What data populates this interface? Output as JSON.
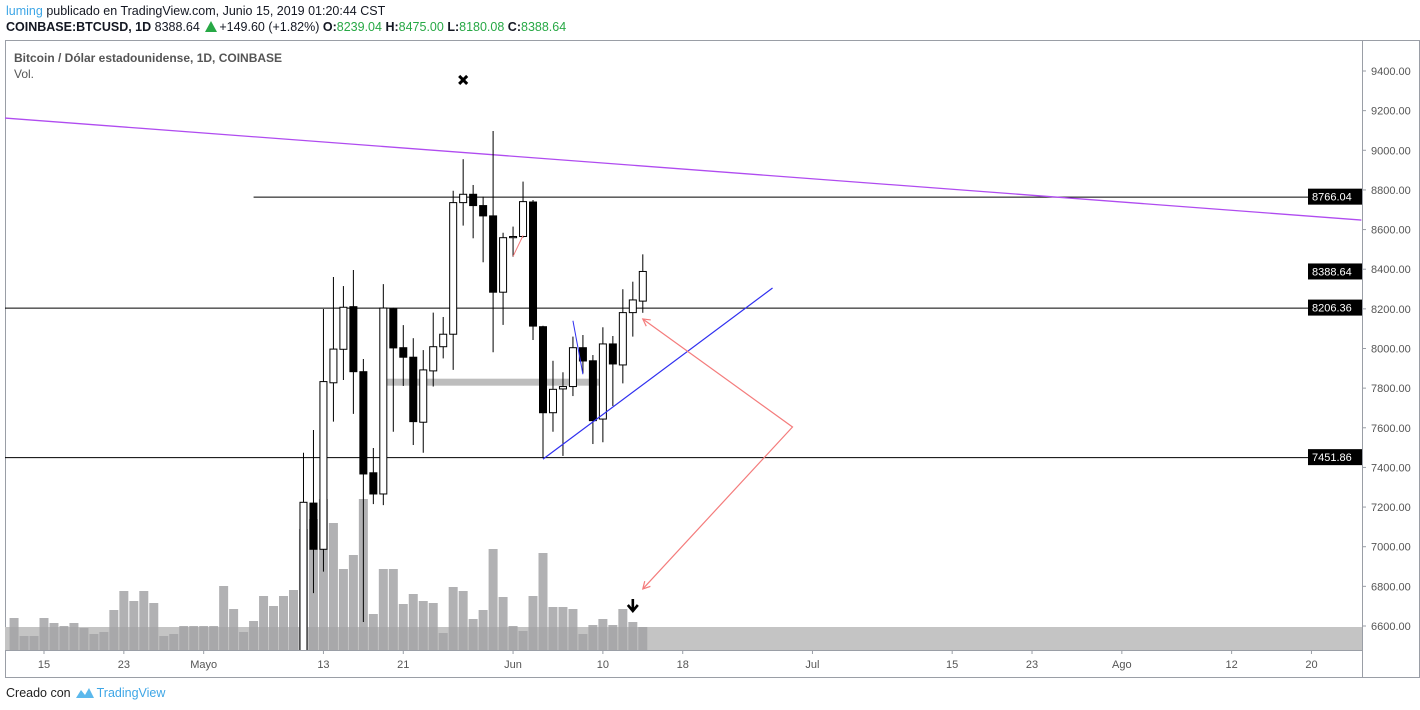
{
  "header": {
    "user": "luming",
    "published": "publicado en TradingView.com, Junio 15, 2019 01:20:44 CST",
    "symbol": "COINBASE:BTCUSD, 1D",
    "last": "8388.64",
    "change": "+149.60 (+1.82%)",
    "o_label": "O:",
    "o": "8239.04",
    "h_label": "H:",
    "h": "8475.00",
    "l_label": "L:",
    "l": "8180.08",
    "c_label": "C:",
    "c": "8388.64"
  },
  "legend": {
    "title": "Bitcoin / Dólar estadounidense, 1D, COINBASE",
    "volume": "Vol."
  },
  "footer": {
    "created_with": "Creado con",
    "brand": "TradingView"
  },
  "colors": {
    "up_body": "#ffffff",
    "down_body": "#000000",
    "volume": "#a3a3a6",
    "trendline_purple": "#b04cf0",
    "trendline_blue": "#3030f0",
    "arrow_red": "#f47c7c",
    "accent_up": "#27a845"
  },
  "chart_data": {
    "type": "candlestick",
    "interval": "1D",
    "yaxis": {
      "range": [
        6500,
        9500
      ],
      "ticks": [
        9400,
        9200,
        9000,
        8800,
        8600,
        8400,
        8200,
        8000,
        7800,
        7600,
        7400,
        7200,
        7000,
        6800,
        6600
      ],
      "position": "right"
    },
    "xaxis": {
      "range": [
        "2019-04-11",
        "2019-08-25"
      ],
      "tick_labels": [
        {
          "date": "2019-04-15",
          "label": "15"
        },
        {
          "date": "2019-04-23",
          "label": "23"
        },
        {
          "date": "2019-05-01",
          "label": "Mayo"
        },
        {
          "date": "2019-05-13",
          "label": "13"
        },
        {
          "date": "2019-05-21",
          "label": "21"
        },
        {
          "date": "2019-06-01",
          "label": "Jun"
        },
        {
          "date": "2019-06-10",
          "label": "10"
        },
        {
          "date": "2019-06-18",
          "label": "18"
        },
        {
          "date": "2019-07-01",
          "label": "Jul"
        },
        {
          "date": "2019-07-15",
          "label": "15"
        },
        {
          "date": "2019-07-23",
          "label": "23"
        },
        {
          "date": "2019-08-01",
          "label": "Ago"
        },
        {
          "date": "2019-08-12",
          "label": "12"
        },
        {
          "date": "2019-08-20",
          "label": "20"
        }
      ]
    },
    "grid": false,
    "candles": [
      {
        "date": "2019-05-11",
        "o": 6350,
        "h": 7474,
        "l": 6150,
        "c": 7224
      },
      {
        "date": "2019-05-12",
        "o": 7220,
        "h": 7589,
        "l": 6766,
        "c": 6987
      },
      {
        "date": "2019-05-13",
        "o": 6987,
        "h": 8199,
        "l": 6874,
        "c": 7833
      },
      {
        "date": "2019-05-14",
        "o": 7827,
        "h": 8361,
        "l": 7631,
        "c": 7997
      },
      {
        "date": "2019-05-15",
        "o": 7996,
        "h": 8315,
        "l": 7841,
        "c": 8208
      },
      {
        "date": "2019-05-16",
        "o": 8211,
        "h": 8396,
        "l": 7670,
        "c": 7883
      },
      {
        "date": "2019-05-17",
        "o": 7883,
        "h": 7947,
        "l": 6620,
        "c": 7367
      },
      {
        "date": "2019-05-18",
        "o": 7373,
        "h": 7498,
        "l": 7215,
        "c": 7266
      },
      {
        "date": "2019-05-19",
        "o": 7266,
        "h": 8325,
        "l": 7210,
        "c": 8204
      },
      {
        "date": "2019-05-20",
        "o": 8199,
        "h": 8205,
        "l": 7580,
        "c": 8003
      },
      {
        "date": "2019-05-21",
        "o": 8004,
        "h": 8118,
        "l": 7811,
        "c": 7956
      },
      {
        "date": "2019-05-22",
        "o": 7956,
        "h": 8052,
        "l": 7513,
        "c": 7631
      },
      {
        "date": "2019-05-23",
        "o": 7628,
        "h": 7992,
        "l": 7474,
        "c": 7892
      },
      {
        "date": "2019-05-24",
        "o": 7887,
        "h": 8181,
        "l": 7808,
        "c": 8009
      },
      {
        "date": "2019-05-25",
        "o": 8009,
        "h": 8159,
        "l": 7950,
        "c": 8072
      },
      {
        "date": "2019-05-26",
        "o": 8072,
        "h": 8796,
        "l": 7892,
        "c": 8736
      },
      {
        "date": "2019-05-27",
        "o": 8736,
        "h": 8955,
        "l": 8620,
        "c": 8778
      },
      {
        "date": "2019-05-28",
        "o": 8778,
        "h": 8825,
        "l": 8556,
        "c": 8721
      },
      {
        "date": "2019-05-29",
        "o": 8721,
        "h": 8766,
        "l": 8435,
        "c": 8669
      },
      {
        "date": "2019-05-30",
        "o": 8669,
        "h": 9097,
        "l": 7981,
        "c": 8284
      },
      {
        "date": "2019-05-31",
        "o": 8284,
        "h": 8584,
        "l": 8119,
        "c": 8559
      },
      {
        "date": "2019-06-01",
        "o": 8559,
        "h": 8615,
        "l": 8463,
        "c": 8565
      },
      {
        "date": "2019-06-02",
        "o": 8565,
        "h": 8842,
        "l": 8560,
        "c": 8741
      },
      {
        "date": "2019-06-03",
        "o": 8739,
        "h": 8749,
        "l": 8043,
        "c": 8113
      },
      {
        "date": "2019-06-04",
        "o": 8110,
        "h": 8115,
        "l": 7447,
        "c": 7676
      },
      {
        "date": "2019-06-05",
        "o": 7676,
        "h": 7938,
        "l": 7580,
        "c": 7794
      },
      {
        "date": "2019-06-06",
        "o": 7796,
        "h": 7880,
        "l": 7458,
        "c": 7808
      },
      {
        "date": "2019-06-07",
        "o": 7808,
        "h": 8060,
        "l": 7760,
        "c": 8004
      },
      {
        "date": "2019-06-08",
        "o": 8004,
        "h": 8068,
        "l": 7875,
        "c": 7937
      },
      {
        "date": "2019-06-09",
        "o": 7938,
        "h": 7967,
        "l": 7518,
        "c": 7636
      },
      {
        "date": "2019-06-10",
        "o": 7644,
        "h": 8107,
        "l": 7527,
        "c": 8023
      },
      {
        "date": "2019-06-11",
        "o": 8023,
        "h": 8063,
        "l": 7710,
        "c": 7922
      },
      {
        "date": "2019-06-12",
        "o": 7917,
        "h": 8299,
        "l": 7824,
        "c": 8181
      },
      {
        "date": "2019-06-13",
        "o": 8181,
        "h": 8337,
        "l": 8060,
        "c": 8245
      },
      {
        "date": "2019-06-14",
        "o": 8239.04,
        "h": 8475.0,
        "l": 8180.08,
        "c": 8388.64
      }
    ],
    "volume_start": "2019-04-12",
    "volume_relative": [
      32,
      14,
      14,
      32,
      27,
      24,
      27,
      22,
      16,
      18,
      40,
      59,
      49,
      59,
      47,
      14,
      16,
      24,
      24,
      24,
      24,
      64,
      41,
      18,
      29,
      54,
      44,
      54,
      60,
      121,
      131,
      151,
      127,
      81,
      95,
      151,
      36,
      81,
      81,
      46,
      56,
      49,
      47,
      17,
      63,
      59,
      31,
      40,
      101,
      53,
      24,
      19,
      54,
      97,
      43,
      43,
      41,
      16,
      25,
      31,
      25,
      41,
      28,
      23
    ],
    "price_tags": [
      {
        "label": "8766.04",
        "value": 8766.04
      },
      {
        "label": "8388.64",
        "value": 8388.64
      },
      {
        "label": "8206.36",
        "value": 8206.36
      },
      {
        "label": "7451.86",
        "value": 7451.86
      }
    ],
    "drawings": {
      "horizontal_lines": [
        {
          "value": 8766.04,
          "from": "2019-05-06"
        },
        {
          "value": 8206.36,
          "from": "2019-04-11"
        },
        {
          "value": 7451.86,
          "from": "2019-04-11"
        }
      ],
      "purple_trendline": [
        [
          "2019-04-11",
          9163
        ],
        [
          "2019-08-25",
          8648
        ]
      ],
      "blue_trendline": [
        [
          "2019-06-04",
          7442
        ],
        [
          "2019-06-27",
          8305
        ]
      ],
      "blue_short_line": [
        [
          "2019-06-07",
          8140
        ],
        [
          "2019-06-08",
          7870
        ]
      ],
      "red_path": [
        [
          "2019-06-14",
          8149
        ],
        [
          "2019-06-29",
          7604
        ],
        [
          "2019-06-14",
          6787
        ]
      ],
      "red_small_line": [
        [
          "2019-06-01",
          8465
        ],
        [
          "2019-06-02",
          8570
        ]
      ],
      "gray_zone": {
        "from": "2019-05-19",
        "to": "2019-06-10",
        "value": 7830
      },
      "x_marker": [
        "2019-05-27",
        9355
      ],
      "down_arrow_marker": "2019-06-13",
      "volume_band": true
    }
  }
}
